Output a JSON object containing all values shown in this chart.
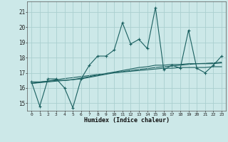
{
  "x": [
    0,
    1,
    2,
    3,
    4,
    5,
    6,
    7,
    8,
    9,
    10,
    11,
    12,
    13,
    14,
    15,
    16,
    17,
    18,
    19,
    20,
    21,
    22,
    23
  ],
  "y_main": [
    16.4,
    14.8,
    16.6,
    16.6,
    16.0,
    14.7,
    16.6,
    17.5,
    18.1,
    18.1,
    18.5,
    20.3,
    18.9,
    19.2,
    18.6,
    21.3,
    17.2,
    17.5,
    17.3,
    19.8,
    17.3,
    17.0,
    17.5,
    18.1
  ],
  "y_smooth1": [
    16.4,
    16.4,
    16.45,
    16.5,
    16.5,
    16.55,
    16.6,
    16.7,
    16.8,
    16.9,
    17.0,
    17.05,
    17.1,
    17.15,
    17.2,
    17.25,
    17.3,
    17.3,
    17.35,
    17.35,
    17.35,
    17.35,
    17.4,
    17.4
  ],
  "y_smooth2": [
    16.3,
    16.35,
    16.4,
    16.45,
    16.5,
    16.55,
    16.65,
    16.75,
    16.85,
    16.95,
    17.05,
    17.15,
    17.25,
    17.35,
    17.4,
    17.5,
    17.5,
    17.55,
    17.55,
    17.6,
    17.6,
    17.6,
    17.6,
    17.65
  ],
  "y_linear": [
    16.3,
    16.38,
    16.46,
    16.54,
    16.62,
    16.68,
    16.75,
    16.82,
    16.89,
    16.96,
    17.0,
    17.08,
    17.15,
    17.22,
    17.28,
    17.35,
    17.4,
    17.45,
    17.5,
    17.55,
    17.6,
    17.62,
    17.65,
    17.7
  ],
  "bg_color": "#cce8e8",
  "grid_color": "#aacfcf",
  "line_color": "#1a6060",
  "xlabel": "Humidex (Indice chaleur)",
  "ylim": [
    14.5,
    21.7
  ],
  "xlim": [
    -0.5,
    23.5
  ],
  "yticks": [
    15,
    16,
    17,
    18,
    19,
    20,
    21
  ],
  "xticks": [
    0,
    1,
    2,
    3,
    4,
    5,
    6,
    7,
    8,
    9,
    10,
    11,
    12,
    13,
    14,
    15,
    16,
    17,
    18,
    19,
    20,
    21,
    22,
    23
  ]
}
